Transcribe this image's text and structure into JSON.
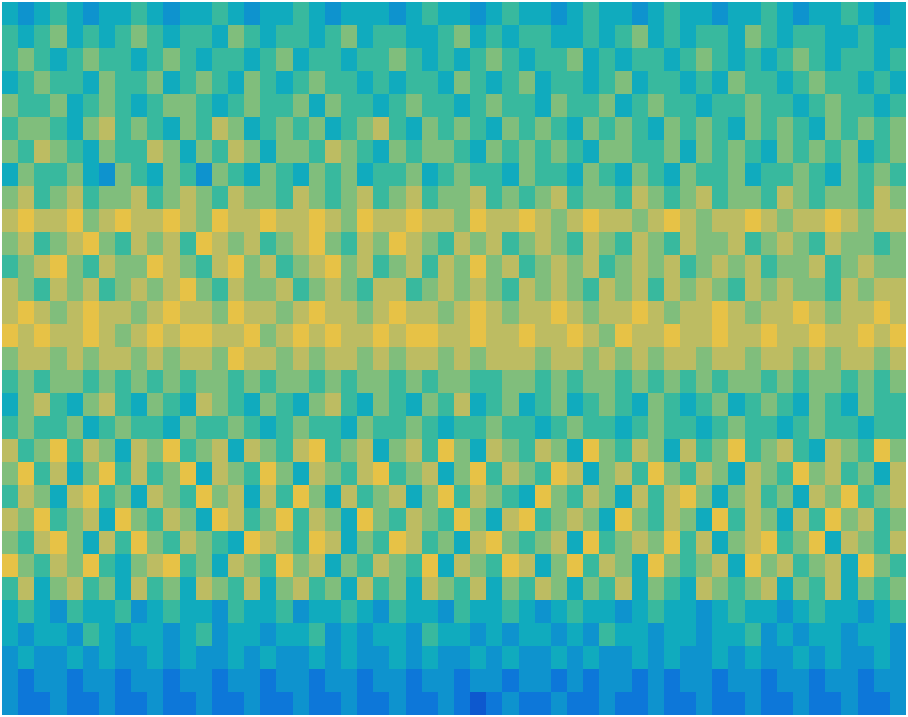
{
  "chart_data": {
    "type": "heatmap",
    "tick_labels": false,
    "color_range": [
      0,
      10
    ],
    "cells": [
      [
        4,
        3,
        4,
        5,
        4,
        3,
        4,
        4,
        5,
        4,
        3,
        4,
        4,
        5,
        4,
        3,
        4,
        4,
        5,
        4,
        3,
        4,
        4,
        4,
        3,
        4,
        5,
        4,
        4,
        3,
        4,
        5,
        4,
        4,
        3,
        4,
        5,
        4,
        4,
        3,
        4,
        5,
        4,
        4,
        3,
        4,
        4,
        5,
        4,
        3,
        4,
        4,
        5,
        4,
        3,
        4
      ],
      [
        5,
        4,
        5,
        6,
        4,
        5,
        4,
        5,
        6,
        5,
        4,
        5,
        5,
        4,
        6,
        5,
        4,
        5,
        5,
        4,
        5,
        6,
        4,
        5,
        5,
        4,
        4,
        5,
        6,
        4,
        5,
        4,
        5,
        5,
        4,
        4,
        5,
        4,
        5,
        6,
        4,
        5,
        4,
        5,
        5,
        4,
        6,
        5,
        4,
        5,
        5,
        4,
        4,
        5,
        4,
        4
      ],
      [
        5,
        6,
        5,
        4,
        5,
        6,
        5,
        5,
        4,
        5,
        6,
        5,
        4,
        5,
        5,
        4,
        5,
        6,
        4,
        5,
        5,
        4,
        5,
        5,
        6,
        5,
        4,
        5,
        4,
        5,
        6,
        5,
        4,
        5,
        5,
        6,
        4,
        5,
        4,
        5,
        5,
        4,
        5,
        6,
        5,
        4,
        5,
        4,
        5,
        6,
        5,
        4,
        5,
        5,
        4,
        5
      ],
      [
        4,
        5,
        6,
        5,
        5,
        4,
        6,
        5,
        5,
        6,
        4,
        5,
        6,
        5,
        4,
        6,
        5,
        4,
        5,
        6,
        5,
        5,
        4,
        5,
        4,
        5,
        5,
        4,
        6,
        5,
        4,
        5,
        6,
        4,
        5,
        5,
        4,
        5,
        6,
        4,
        5,
        5,
        4,
        5,
        4,
        6,
        5,
        5,
        4,
        5,
        6,
        5,
        5,
        4,
        5,
        4
      ],
      [
        6,
        5,
        5,
        6,
        4,
        5,
        6,
        5,
        4,
        5,
        6,
        6,
        5,
        4,
        5,
        6,
        5,
        5,
        6,
        4,
        6,
        5,
        5,
        4,
        5,
        6,
        5,
        5,
        4,
        5,
        6,
        5,
        5,
        4,
        6,
        5,
        5,
        6,
        4,
        5,
        6,
        5,
        5,
        4,
        5,
        5,
        6,
        5,
        5,
        4,
        5,
        6,
        5,
        5,
        4,
        5
      ],
      [
        5,
        6,
        6,
        5,
        4,
        6,
        7,
        5,
        6,
        5,
        4,
        6,
        5,
        7,
        6,
        4,
        5,
        6,
        5,
        6,
        4,
        5,
        6,
        7,
        5,
        4,
        6,
        5,
        6,
        5,
        4,
        6,
        5,
        6,
        5,
        4,
        6,
        5,
        6,
        5,
        4,
        6,
        5,
        6,
        5,
        4,
        6,
        5,
        6,
        5,
        4,
        6,
        5,
        6,
        5,
        6
      ],
      [
        6,
        5,
        7,
        6,
        5,
        4,
        6,
        5,
        5,
        7,
        6,
        4,
        6,
        5,
        7,
        6,
        4,
        6,
        6,
        5,
        7,
        6,
        5,
        4,
        6,
        5,
        6,
        6,
        5,
        4,
        6,
        5,
        6,
        5,
        6,
        5,
        4,
        6,
        6,
        5,
        5,
        6,
        4,
        6,
        5,
        6,
        5,
        4,
        6,
        5,
        6,
        5,
        6,
        4,
        5,
        6
      ],
      [
        4,
        6,
        5,
        5,
        6,
        4,
        3,
        6,
        5,
        4,
        6,
        5,
        3,
        6,
        5,
        4,
        6,
        5,
        4,
        6,
        5,
        6,
        4,
        5,
        5,
        6,
        4,
        5,
        6,
        5,
        5,
        4,
        6,
        5,
        5,
        4,
        6,
        5,
        4,
        6,
        5,
        4,
        6,
        5,
        5,
        6,
        4,
        5,
        5,
        6,
        5,
        4,
        6,
        5,
        6,
        5
      ],
      [
        6,
        7,
        5,
        6,
        7,
        5,
        6,
        6,
        7,
        5,
        6,
        7,
        6,
        5,
        7,
        6,
        6,
        5,
        7,
        6,
        5,
        6,
        7,
        5,
        6,
        7,
        5,
        6,
        6,
        7,
        5,
        6,
        5,
        6,
        7,
        5,
        6,
        6,
        5,
        7,
        6,
        5,
        6,
        7,
        5,
        6,
        6,
        5,
        7,
        6,
        5,
        6,
        6,
        5,
        7,
        6
      ],
      [
        7,
        8,
        7,
        7,
        8,
        6,
        7,
        8,
        7,
        7,
        8,
        7,
        6,
        8,
        7,
        7,
        8,
        7,
        7,
        8,
        7,
        6,
        8,
        7,
        7,
        8,
        7,
        7,
        6,
        8,
        7,
        7,
        8,
        7,
        6,
        7,
        8,
        7,
        7,
        6,
        7,
        8,
        7,
        6,
        7,
        7,
        8,
        7,
        6,
        7,
        7,
        8,
        7,
        6,
        7,
        7
      ],
      [
        6,
        7,
        5,
        6,
        7,
        8,
        6,
        5,
        7,
        6,
        7,
        5,
        8,
        7,
        6,
        7,
        5,
        6,
        7,
        8,
        6,
        5,
        7,
        6,
        8,
        7,
        6,
        5,
        7,
        6,
        7,
        5,
        6,
        7,
        6,
        5,
        7,
        6,
        5,
        7,
        6,
        5,
        7,
        6,
        6,
        7,
        5,
        6,
        7,
        6,
        5,
        7,
        6,
        6,
        5,
        6
      ],
      [
        5,
        6,
        7,
        8,
        6,
        5,
        7,
        6,
        6,
        8,
        7,
        6,
        5,
        7,
        8,
        6,
        7,
        5,
        6,
        7,
        8,
        6,
        7,
        5,
        6,
        7,
        5,
        7,
        6,
        8,
        6,
        7,
        5,
        6,
        7,
        6,
        7,
        5,
        6,
        7,
        6,
        7,
        5,
        6,
        7,
        6,
        7,
        5,
        6,
        6,
        7,
        5,
        6,
        7,
        6,
        6
      ],
      [
        7,
        6,
        5,
        7,
        6,
        7,
        5,
        6,
        7,
        6,
        7,
        8,
        6,
        5,
        7,
        6,
        6,
        7,
        5,
        6,
        7,
        6,
        5,
        7,
        7,
        5,
        6,
        7,
        6,
        7,
        6,
        5,
        7,
        6,
        7,
        6,
        5,
        7,
        6,
        7,
        5,
        7,
        6,
        7,
        6,
        5,
        7,
        6,
        7,
        6,
        6,
        5,
        7,
        6,
        7,
        7
      ],
      [
        7,
        8,
        7,
        6,
        7,
        8,
        7,
        7,
        6,
        7,
        8,
        7,
        7,
        6,
        8,
        7,
        7,
        6,
        7,
        8,
        7,
        7,
        6,
        7,
        8,
        7,
        7,
        6,
        7,
        8,
        7,
        6,
        7,
        7,
        8,
        7,
        6,
        7,
        7,
        8,
        7,
        6,
        7,
        7,
        8,
        7,
        6,
        7,
        7,
        8,
        7,
        6,
        7,
        7,
        8,
        7
      ],
      [
        8,
        7,
        8,
        7,
        7,
        8,
        7,
        6,
        7,
        8,
        7,
        8,
        8,
        7,
        7,
        8,
        6,
        7,
        8,
        7,
        8,
        7,
        7,
        8,
        7,
        8,
        8,
        7,
        7,
        8,
        7,
        7,
        8,
        7,
        7,
        8,
        7,
        6,
        8,
        7,
        7,
        8,
        7,
        7,
        8,
        7,
        7,
        8,
        7,
        7,
        8,
        7,
        7,
        8,
        7,
        8
      ],
      [
        6,
        7,
        7,
        6,
        7,
        6,
        7,
        7,
        6,
        7,
        6,
        7,
        7,
        6,
        8,
        7,
        7,
        6,
        7,
        6,
        7,
        7,
        6,
        7,
        6,
        7,
        7,
        6,
        7,
        6,
        7,
        7,
        7,
        6,
        7,
        7,
        6,
        7,
        6,
        7,
        6,
        7,
        7,
        6,
        7,
        7,
        6,
        7,
        7,
        6,
        7,
        6,
        7,
        7,
        6,
        7
      ],
      [
        5,
        6,
        5,
        6,
        6,
        5,
        6,
        5,
        6,
        5,
        6,
        5,
        6,
        6,
        5,
        6,
        5,
        6,
        6,
        5,
        6,
        5,
        6,
        6,
        5,
        6,
        5,
        6,
        6,
        5,
        5,
        6,
        6,
        5,
        6,
        5,
        6,
        6,
        5,
        6,
        5,
        6,
        5,
        6,
        5,
        6,
        6,
        5,
        6,
        5,
        6,
        6,
        5,
        6,
        5,
        6
      ],
      [
        4,
        6,
        7,
        5,
        4,
        6,
        7,
        5,
        4,
        6,
        5,
        4,
        7,
        6,
        5,
        4,
        6,
        5,
        4,
        6,
        7,
        5,
        4,
        6,
        5,
        4,
        6,
        5,
        7,
        4,
        5,
        6,
        4,
        5,
        6,
        4,
        5,
        6,
        5,
        4,
        6,
        5,
        4,
        5,
        6,
        4,
        5,
        6,
        5,
        4,
        6,
        5,
        4,
        6,
        5,
        5
      ],
      [
        5,
        6,
        5,
        5,
        6,
        4,
        5,
        6,
        5,
        5,
        4,
        6,
        5,
        5,
        6,
        5,
        4,
        5,
        6,
        5,
        5,
        4,
        6,
        5,
        5,
        6,
        5,
        4,
        5,
        5,
        6,
        5,
        5,
        4,
        5,
        6,
        5,
        5,
        4,
        5,
        6,
        5,
        5,
        4,
        5,
        6,
        5,
        5,
        4,
        5,
        6,
        5,
        5,
        4,
        5,
        5
      ],
      [
        7,
        5,
        6,
        8,
        5,
        7,
        6,
        4,
        7,
        6,
        8,
        5,
        6,
        7,
        4,
        7,
        6,
        5,
        7,
        8,
        5,
        6,
        7,
        4,
        6,
        7,
        5,
        8,
        6,
        4,
        7,
        6,
        5,
        7,
        6,
        4,
        8,
        6,
        5,
        7,
        6,
        4,
        7,
        5,
        6,
        8,
        5,
        6,
        7,
        5,
        4,
        7,
        6,
        5,
        8,
        6
      ],
      [
        6,
        8,
        5,
        7,
        4,
        6,
        8,
        5,
        7,
        5,
        6,
        8,
        4,
        7,
        6,
        5,
        8,
        6,
        4,
        7,
        6,
        5,
        7,
        8,
        5,
        6,
        7,
        4,
        6,
        8,
        5,
        7,
        6,
        5,
        8,
        7,
        4,
        6,
        7,
        5,
        8,
        6,
        5,
        7,
        6,
        4,
        7,
        6,
        5,
        8,
        6,
        7,
        5,
        6,
        4,
        7
      ],
      [
        5,
        7,
        6,
        4,
        7,
        8,
        5,
        6,
        4,
        7,
        6,
        5,
        8,
        6,
        7,
        4,
        7,
        5,
        8,
        6,
        4,
        7,
        5,
        6,
        7,
        4,
        6,
        8,
        5,
        7,
        6,
        5,
        4,
        8,
        6,
        5,
        7,
        6,
        4,
        7,
        5,
        7,
        8,
        6,
        4,
        6,
        7,
        5,
        6,
        4,
        7,
        6,
        8,
        5,
        6,
        7
      ],
      [
        7,
        6,
        8,
        5,
        6,
        7,
        4,
        8,
        6,
        5,
        7,
        6,
        4,
        8,
        7,
        5,
        6,
        8,
        5,
        7,
        6,
        4,
        8,
        6,
        5,
        7,
        6,
        5,
        8,
        6,
        4,
        7,
        8,
        5,
        6,
        7,
        6,
        4,
        8,
        6,
        5,
        7,
        6,
        4,
        8,
        5,
        7,
        6,
        4,
        7,
        5,
        8,
        6,
        7,
        5,
        6
      ],
      [
        6,
        5,
        7,
        8,
        6,
        4,
        7,
        5,
        8,
        6,
        5,
        7,
        6,
        5,
        4,
        8,
        7,
        6,
        5,
        8,
        7,
        4,
        6,
        5,
        8,
        7,
        5,
        6,
        4,
        7,
        8,
        6,
        5,
        6,
        7,
        4,
        8,
        5,
        6,
        7,
        6,
        8,
        5,
        7,
        4,
        6,
        7,
        8,
        5,
        6,
        8,
        4,
        7,
        6,
        5,
        7
      ],
      [
        8,
        6,
        5,
        7,
        6,
        8,
        5,
        4,
        6,
        7,
        8,
        5,
        6,
        4,
        7,
        6,
        5,
        8,
        6,
        7,
        4,
        6,
        5,
        7,
        6,
        5,
        8,
        4,
        7,
        6,
        5,
        8,
        7,
        4,
        6,
        8,
        5,
        7,
        6,
        4,
        8,
        6,
        5,
        6,
        7,
        4,
        8,
        6,
        7,
        5,
        6,
        7,
        4,
        8,
        6,
        5
      ],
      [
        5,
        7,
        4,
        6,
        7,
        5,
        6,
        4,
        7,
        5,
        6,
        4,
        7,
        6,
        5,
        7,
        4,
        6,
        7,
        5,
        6,
        4,
        7,
        5,
        6,
        4,
        7,
        6,
        5,
        7,
        4,
        6,
        5,
        7,
        6,
        4,
        6,
        5,
        7,
        4,
        6,
        5,
        4,
        7,
        6,
        5,
        6,
        7,
        4,
        6,
        5,
        7,
        4,
        6,
        5,
        6
      ],
      [
        4,
        5,
        4,
        3,
        5,
        4,
        4,
        5,
        3,
        4,
        5,
        4,
        4,
        3,
        5,
        4,
        4,
        5,
        3,
        4,
        4,
        5,
        4,
        3,
        5,
        4,
        4,
        3,
        5,
        4,
        4,
        5,
        4,
        3,
        4,
        5,
        4,
        4,
        3,
        4,
        5,
        4,
        4,
        3,
        4,
        5,
        4,
        4,
        3,
        4,
        5,
        4,
        4,
        3,
        4,
        5
      ],
      [
        4,
        3,
        4,
        4,
        3,
        5,
        4,
        3,
        4,
        4,
        3,
        4,
        5,
        3,
        4,
        4,
        3,
        4,
        4,
        5,
        3,
        4,
        3,
        4,
        4,
        3,
        5,
        4,
        4,
        3,
        4,
        3,
        4,
        4,
        3,
        4,
        3,
        5,
        4,
        4,
        3,
        4,
        4,
        3,
        4,
        4,
        5,
        3,
        4,
        3,
        4,
        4,
        3,
        4,
        4,
        3
      ],
      [
        3,
        4,
        3,
        3,
        4,
        3,
        4,
        3,
        3,
        4,
        3,
        4,
        3,
        3,
        4,
        3,
        4,
        3,
        3,
        4,
        3,
        4,
        3,
        3,
        4,
        3,
        4,
        3,
        3,
        4,
        3,
        4,
        3,
        3,
        4,
        3,
        4,
        3,
        3,
        4,
        3,
        4,
        3,
        3,
        4,
        3,
        4,
        3,
        3,
        4,
        3,
        4,
        3,
        3,
        4,
        3
      ],
      [
        3,
        2,
        3,
        3,
        2,
        3,
        3,
        2,
        3,
        3,
        2,
        3,
        3,
        2,
        3,
        3,
        2,
        3,
        3,
        2,
        3,
        3,
        2,
        3,
        3,
        2,
        3,
        3,
        2,
        3,
        3,
        2,
        3,
        3,
        2,
        3,
        2,
        3,
        3,
        2,
        3,
        2,
        3,
        3,
        2,
        3,
        3,
        2,
        3,
        3,
        2,
        3,
        3,
        2,
        3,
        3
      ],
      [
        3,
        2,
        2,
        3,
        2,
        2,
        3,
        2,
        2,
        3,
        2,
        2,
        3,
        2,
        2,
        3,
        2,
        2,
        3,
        2,
        2,
        3,
        2,
        2,
        3,
        2,
        2,
        3,
        2,
        1,
        2,
        3,
        2,
        2,
        3,
        2,
        2,
        3,
        2,
        2,
        3,
        2,
        2,
        3,
        2,
        2,
        3,
        2,
        2,
        3,
        2,
        2,
        3,
        2,
        2,
        3
      ]
    ]
  }
}
